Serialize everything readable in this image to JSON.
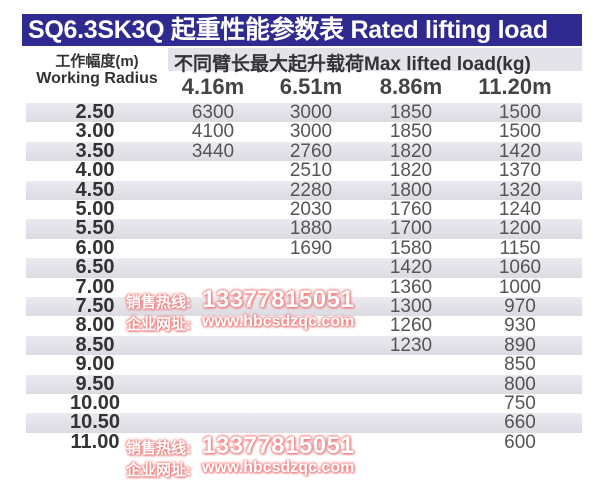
{
  "title": "SQ6.3SK3Q 起重性能参数表 Rated lifting load",
  "header": {
    "radius_cn": "工作幅度(m)",
    "radius_en": "Working Radius",
    "max_load": "不同臂长最大起升载荷Max lifted load(kg)",
    "booms": [
      "4.16m",
      "6.51m",
      "8.86m",
      "11.20m"
    ]
  },
  "rows": [
    {
      "r": "2.50",
      "v": [
        "6300",
        "3000",
        "1850",
        "1500"
      ]
    },
    {
      "r": "3.00",
      "v": [
        "4100",
        "3000",
        "1850",
        "1500"
      ]
    },
    {
      "r": "3.50",
      "v": [
        "3440",
        "2760",
        "1820",
        "1420"
      ]
    },
    {
      "r": "4.00",
      "v": [
        "",
        "2510",
        "1820",
        "1370"
      ]
    },
    {
      "r": "4.50",
      "v": [
        "",
        "2280",
        "1800",
        "1320"
      ]
    },
    {
      "r": "5.00",
      "v": [
        "",
        "2030",
        "1760",
        "1240"
      ]
    },
    {
      "r": "5.50",
      "v": [
        "",
        "1880",
        "1700",
        "1200"
      ]
    },
    {
      "r": "6.00",
      "v": [
        "",
        "1690",
        "1580",
        "1150"
      ]
    },
    {
      "r": "6.50",
      "v": [
        "",
        "",
        "1420",
        "1060"
      ]
    },
    {
      "r": "7.00",
      "v": [
        "",
        "",
        "1360",
        "1000"
      ]
    },
    {
      "r": "7.50",
      "v": [
        "",
        "",
        "1300",
        "970"
      ]
    },
    {
      "r": "8.00",
      "v": [
        "",
        "",
        "1260",
        "930"
      ]
    },
    {
      "r": "8.50",
      "v": [
        "",
        "",
        "1230",
        "890"
      ]
    },
    {
      "r": "9.00",
      "v": [
        "",
        "",
        "",
        "850"
      ]
    },
    {
      "r": "9.50",
      "v": [
        "",
        "",
        "",
        "800"
      ]
    },
    {
      "r": "10.00",
      "v": [
        "",
        "",
        "",
        "750"
      ]
    },
    {
      "r": "10.50",
      "v": [
        "",
        "",
        "",
        "660"
      ]
    },
    {
      "r": "11.00",
      "v": [
        "",
        "",
        "",
        "600"
      ]
    }
  ],
  "watermark": {
    "hotline_label": "销售热线:",
    "hotline": "13377815051",
    "site_label": "企业网址:",
    "site": "www.hbcsdzqc.com"
  }
}
